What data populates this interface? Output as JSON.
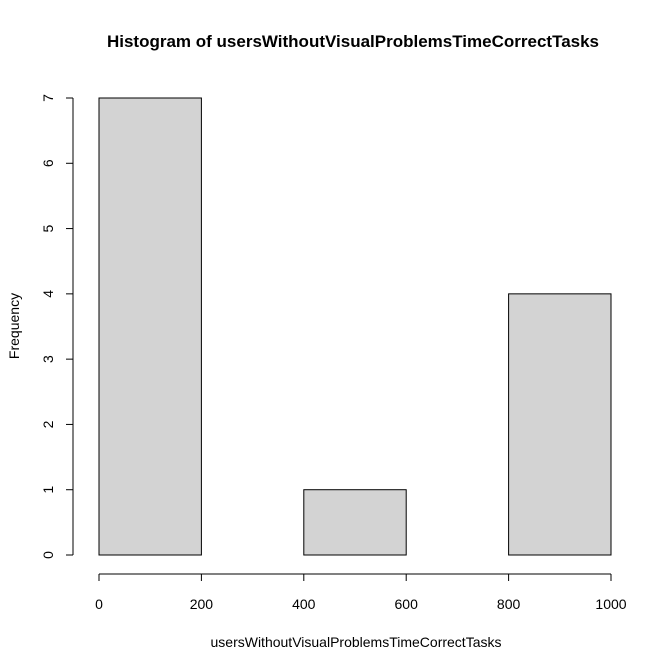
{
  "chart_data": {
    "type": "bar",
    "title": "Histogram of usersWithoutVisualProblemsTimeCorrectTasks",
    "xlabel": "usersWithoutVisualProblemsTimeCorrectTasks",
    "ylabel": "Frequency",
    "bins": [
      {
        "from": 0,
        "to": 200,
        "count": 7
      },
      {
        "from": 200,
        "to": 400,
        "count": 0
      },
      {
        "from": 400,
        "to": 600,
        "count": 1
      },
      {
        "from": 600,
        "to": 800,
        "count": 0
      },
      {
        "from": 800,
        "to": 1000,
        "count": 4
      }
    ],
    "xlim": [
      0,
      1000
    ],
    "ylim": [
      0,
      7
    ],
    "x_ticks": [
      0,
      200,
      400,
      600,
      800,
      1000
    ],
    "y_ticks": [
      0,
      1,
      2,
      3,
      4,
      5,
      6,
      7
    ],
    "bar_fill": "#d3d3d3",
    "grid": false,
    "legend": "none"
  }
}
